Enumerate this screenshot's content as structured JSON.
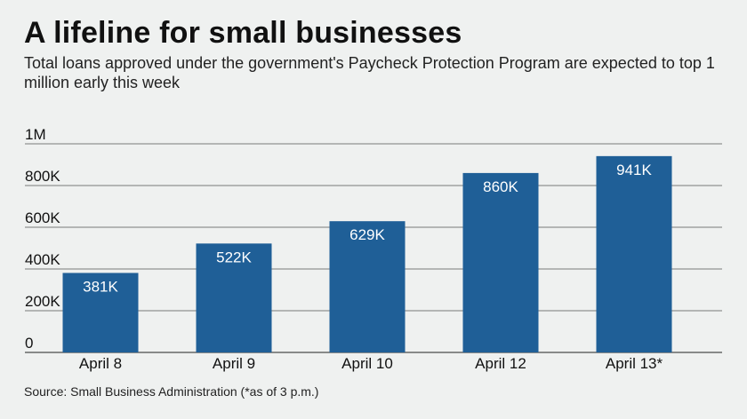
{
  "header": {
    "title": "A lifeline for small businesses",
    "subtitle": "Total loans approved under the government's Paycheck Protection Program are expected to top 1 million early this week"
  },
  "footer": {
    "source": "Source: Small Business Administration (*as of 3 p.m.)"
  },
  "colors": {
    "bar": "#1f5f97",
    "bar_label": "#ffffff",
    "gridline": "#7a7a7a",
    "background": "#eff1f0"
  },
  "chart_data": {
    "type": "bar",
    "categories": [
      "April 8",
      "April 9",
      "April 10",
      "April 12",
      "April 13*"
    ],
    "values": [
      381000,
      522000,
      629000,
      860000,
      941000
    ],
    "data_labels": [
      "381K",
      "522K",
      "629K",
      "860K",
      "941K"
    ],
    "ylim": [
      0,
      1000000
    ],
    "yticks": [
      0,
      200000,
      400000,
      600000,
      800000,
      1000000
    ],
    "ytick_labels": [
      "0",
      "200K",
      "400K",
      "600K",
      "800K",
      "1M"
    ],
    "grid": true,
    "legend": "none",
    "xlabel": "",
    "ylabel": ""
  }
}
